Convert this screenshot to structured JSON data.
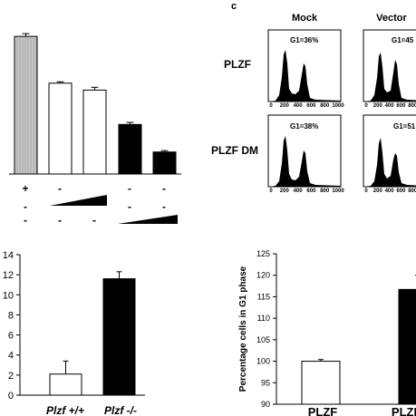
{
  "panel_c_label": "c",
  "chart_data": [
    {
      "type": "bar",
      "id": "top-left",
      "values": [
        100,
        66,
        61,
        36,
        16
      ],
      "errors": [
        2,
        1,
        2,
        1.5,
        1
      ],
      "ylim": [
        0,
        108
      ],
      "fills": [
        "#c8c8c8",
        "#ffffff",
        "#ffffff",
        "#000000",
        "#000000"
      ],
      "treatment_rows": [
        [
          "+",
          "-",
          "",
          "-",
          "-"
        ],
        [
          "-",
          "",
          "",
          "-",
          "-"
        ],
        [
          "-",
          "-",
          "-",
          "",
          ""
        ]
      ]
    },
    {
      "type": "bar",
      "id": "bottom-left",
      "categories": [
        "Plzf +/+",
        "Plzf -/-"
      ],
      "values": [
        2.1,
        11.6
      ],
      "errors": [
        1.3,
        0.7
      ],
      "ylim": [
        0,
        14
      ],
      "yticks": [
        0,
        2,
        4,
        6,
        8,
        10,
        12,
        14
      ],
      "fills": [
        "#ffffff",
        "#000000"
      ]
    },
    {
      "type": "bar",
      "id": "bottom-right",
      "categories": [
        "PLZF",
        "PLZF DM"
      ],
      "category_labels_shown": [
        "PLZF",
        "PLZI"
      ],
      "values": [
        100,
        116.7
      ],
      "errors": [
        0.4,
        3.3
      ],
      "ylim": [
        90,
        125
      ],
      "yticks": [
        90,
        95,
        100,
        105,
        110,
        115,
        120,
        125
      ],
      "ylabel": "Percentage cells in G1 phase",
      "fills": [
        "#ffffff",
        "#000000"
      ]
    }
  ],
  "flow_panel": {
    "columns": [
      "Mock",
      "Vector"
    ],
    "rows": [
      "PLZF",
      "PLZF DM"
    ],
    "g1_labels": [
      [
        "G1=36%",
        "G1=45"
      ],
      [
        "G1=38%",
        "G1=51"
      ]
    ],
    "x_ticks": [
      "0",
      "200",
      "400",
      "600",
      "800",
      "1000"
    ]
  }
}
